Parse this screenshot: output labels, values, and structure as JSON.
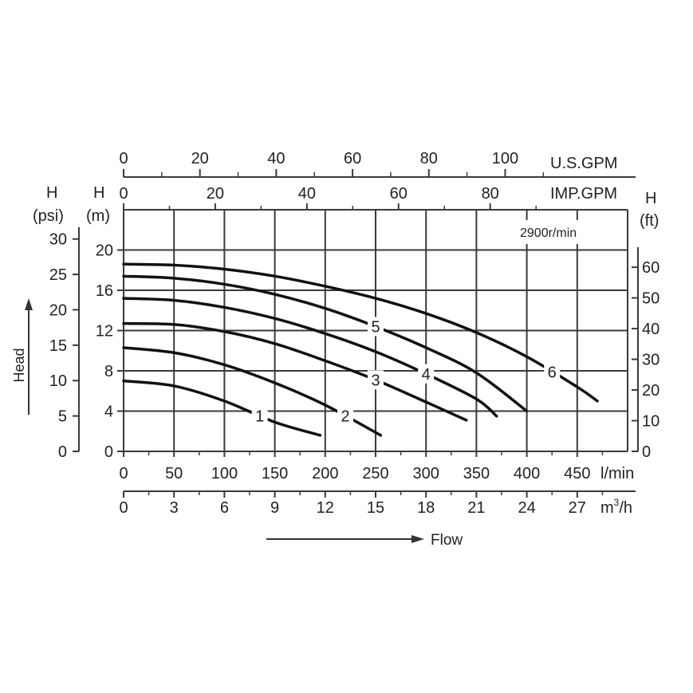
{
  "chart_data": {
    "type": "line",
    "speed_label": "2900r/min",
    "flow_label": "Flow",
    "head_label": "Head",
    "axes": {
      "flow_lmin": {
        "unit": "l/min",
        "ticks": [
          0,
          50,
          100,
          150,
          200,
          250,
          300,
          350,
          400,
          450
        ],
        "range": [
          0,
          500
        ]
      },
      "flow_m3h": {
        "unit_base": "m",
        "unit_sup": "3",
        "unit_tail": "/h",
        "ticks": [
          0,
          3,
          6,
          9,
          12,
          15,
          18,
          21,
          24,
          27
        ]
      },
      "flow_usgpm": {
        "unit": "U.S.GPM",
        "ticks": [
          0,
          20,
          40,
          60,
          80,
          100
        ]
      },
      "flow_impgpm": {
        "unit": "IMP.GPM",
        "ticks": [
          0,
          20,
          40,
          60,
          80
        ]
      },
      "head_m": {
        "label": "H",
        "unit": "(m)",
        "ticks": [
          0,
          4,
          8,
          12,
          16,
          20
        ],
        "range": [
          0,
          24
        ]
      },
      "head_psi": {
        "label": "H",
        "unit": "(psi)",
        "ticks": [
          0,
          5,
          10,
          15,
          20,
          25,
          30
        ]
      },
      "head_ft": {
        "label": "H",
        "unit": "(ft)",
        "ticks": [
          0,
          10,
          20,
          30,
          40,
          50,
          60
        ]
      }
    },
    "grid": true,
    "series": [
      {
        "name": "1",
        "label_at": 135,
        "points": [
          [
            0,
            7.0
          ],
          [
            50,
            6.5
          ],
          [
            100,
            5.0
          ],
          [
            150,
            2.9
          ],
          [
            195,
            1.6
          ]
        ]
      },
      {
        "name": "2",
        "label_at": 220,
        "points": [
          [
            0,
            10.3
          ],
          [
            50,
            9.8
          ],
          [
            100,
            8.6
          ],
          [
            150,
            6.8
          ],
          [
            200,
            4.6
          ],
          [
            255,
            1.6
          ]
        ]
      },
      {
        "name": "3",
        "label_at": 250,
        "points": [
          [
            0,
            12.7
          ],
          [
            50,
            12.6
          ],
          [
            100,
            11.9
          ],
          [
            150,
            10.7
          ],
          [
            200,
            9.0
          ],
          [
            250,
            7.1
          ],
          [
            300,
            4.9
          ],
          [
            340,
            3.1
          ]
        ]
      },
      {
        "name": "4",
        "label_at": 300,
        "points": [
          [
            0,
            15.2
          ],
          [
            50,
            15.0
          ],
          [
            100,
            14.3
          ],
          [
            150,
            13.2
          ],
          [
            200,
            11.7
          ],
          [
            250,
            9.9
          ],
          [
            300,
            7.7
          ],
          [
            350,
            5.2
          ],
          [
            370,
            3.5
          ]
        ]
      },
      {
        "name": "5",
        "label_at": 250,
        "points": [
          [
            0,
            17.4
          ],
          [
            50,
            17.2
          ],
          [
            100,
            16.6
          ],
          [
            150,
            15.6
          ],
          [
            200,
            14.2
          ],
          [
            250,
            12.4
          ],
          [
            300,
            10.3
          ],
          [
            350,
            7.8
          ],
          [
            400,
            4.0
          ]
        ]
      },
      {
        "name": "6",
        "label_at": 425,
        "points": [
          [
            0,
            18.6
          ],
          [
            50,
            18.5
          ],
          [
            100,
            18.1
          ],
          [
            150,
            17.4
          ],
          [
            200,
            16.4
          ],
          [
            250,
            15.2
          ],
          [
            300,
            13.7
          ],
          [
            350,
            11.8
          ],
          [
            400,
            9.4
          ],
          [
            450,
            6.4
          ],
          [
            470,
            5.0
          ]
        ]
      }
    ]
  }
}
